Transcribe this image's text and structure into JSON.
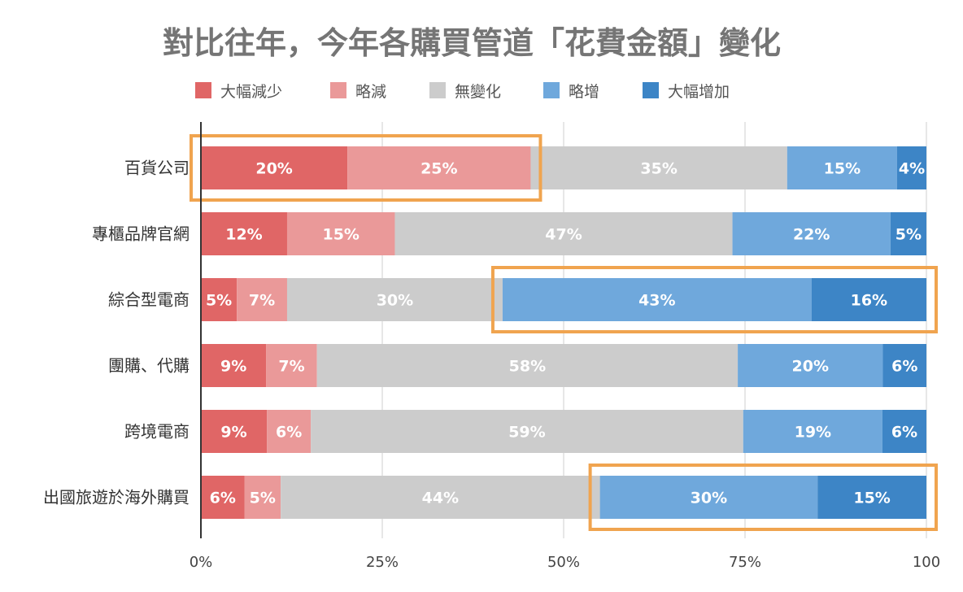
{
  "chart_data": {
    "type": "bar",
    "orientation": "horizontal",
    "stacked": true,
    "title": "對比往年，今年各購買管道「花費金額」變化",
    "categories": [
      "百貨公司",
      "專櫃品牌官網",
      "綜合型電商",
      "團購、代購",
      "跨境電商",
      "出國旅遊於海外購買"
    ],
    "series": [
      {
        "name": "大幅減少",
        "color": "#e06666",
        "values": [
          20,
          12,
          5,
          9,
          9,
          6
        ]
      },
      {
        "name": "略減",
        "color": "#ea9999",
        "values": [
          25,
          15,
          7,
          7,
          6,
          5
        ]
      },
      {
        "name": "無變化",
        "color": "#cccccc",
        "values": [
          35,
          47,
          30,
          58,
          59,
          44
        ]
      },
      {
        "name": "略增",
        "color": "#6fa8dc",
        "values": [
          15,
          22,
          43,
          20,
          19,
          30
        ]
      },
      {
        "name": "大幅增加",
        "color": "#3d85c6",
        "values": [
          4,
          5,
          16,
          6,
          6,
          15
        ]
      }
    ],
    "data_labels": [
      [
        "20%",
        "25%",
        "35%",
        "15%",
        "4%"
      ],
      [
        "12%",
        "15%",
        "47%",
        "22%",
        "5%"
      ],
      [
        "5%",
        "7%",
        "30%",
        "43%",
        "16%"
      ],
      [
        "9%",
        "7%",
        "58%",
        "20%",
        "6%"
      ],
      [
        "9%",
        "6%",
        "59%",
        "19%",
        "6%"
      ],
      [
        "6%",
        "5%",
        "44%",
        "30%",
        "15%"
      ]
    ],
    "x_ticks": [
      0,
      25,
      50,
      75,
      100
    ],
    "x_tick_labels": [
      "0%",
      "25%",
      "50%",
      "75%",
      "100"
    ],
    "xlim": [
      0,
      100
    ],
    "grid": true,
    "legend_position": "top",
    "highlights": [
      {
        "category": "百貨公司",
        "series": [
          "大幅減少",
          "略減"
        ],
        "color": "#f0a44f"
      },
      {
        "category": "綜合型電商",
        "series": [
          "略增",
          "大幅增加"
        ],
        "color": "#f0a44f"
      },
      {
        "category": "出國旅遊於海外購買",
        "series": [
          "略增",
          "大幅增加"
        ],
        "color": "#f0a44f"
      }
    ]
  }
}
